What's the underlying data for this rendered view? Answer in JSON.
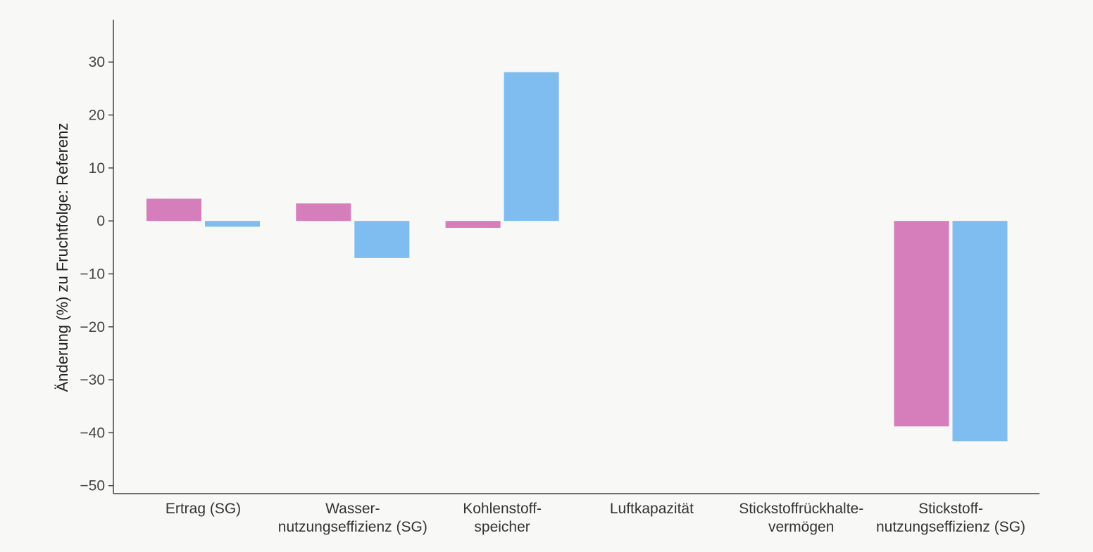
{
  "chart_data": {
    "type": "bar",
    "title": "",
    "xlabel": "",
    "ylabel": "Änderung (%) zu Fruchtfolge: Referenz",
    "ylim": [
      -51.5,
      38
    ],
    "yticks": [
      30,
      20,
      10,
      0,
      -10,
      -20,
      -30,
      -40,
      -50
    ],
    "ytick_labels": [
      "30",
      "20",
      "10",
      "0",
      "−10",
      "−20",
      "−30",
      "−40",
      "−50"
    ],
    "grid": false,
    "legend": "none",
    "categories": [
      [
        "Ertrag (SG)"
      ],
      [
        "Wasser-",
        "nutzungseffizienz (SG)"
      ],
      [
        "Kohlenstoff-",
        "speicher"
      ],
      [
        "Luftkapazität"
      ],
      [
        "Stickstoffrückhalte-",
        "vermögen"
      ],
      [
        "Stickstoff-",
        "nutzungseffizienz (SG)"
      ]
    ],
    "series": [
      {
        "color": "#d67ebb",
        "values": [
          4.2,
          3.3,
          -1.3,
          null,
          null,
          -38.8
        ]
      },
      {
        "color": "#7fbdf1",
        "values": [
          -1.1,
          -7.0,
          28.1,
          null,
          null,
          -41.6
        ]
      }
    ]
  }
}
